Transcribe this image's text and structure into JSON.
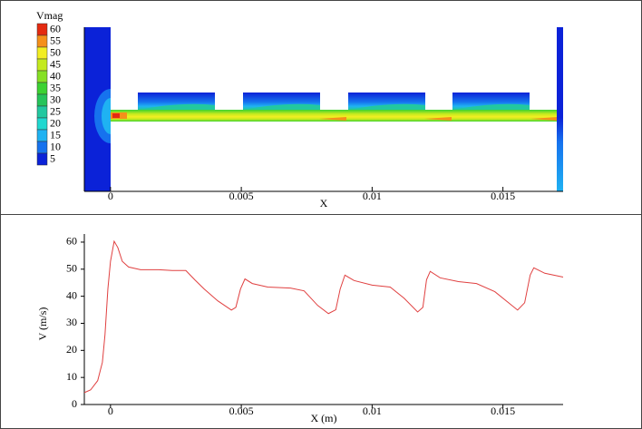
{
  "chart_data": [
    {
      "type": "contour",
      "legend_title": "Vmag",
      "levels": [
        60,
        55,
        50,
        45,
        40,
        35,
        30,
        25,
        20,
        15,
        10,
        5
      ],
      "level_colors": [
        "#e42a10",
        "#f5901a",
        "#f2ee22",
        "#c4ea1e",
        "#86e024",
        "#3cd232",
        "#26c45a",
        "#22c8a0",
        "#20d8d0",
        "#1fb2f2",
        "#1672ee",
        "#0b22d8"
      ],
      "xlabel": "X",
      "xlim": [
        -0.001,
        0.0173
      ],
      "xticks": [
        0,
        0.005,
        0.01,
        0.015
      ]
    },
    {
      "type": "line",
      "xlabel": "X (m)",
      "ylabel": "V (m/s)",
      "color": "#e04040",
      "x": [
        -0.001,
        -0.00076,
        -0.00049,
        -0.00031,
        -0.00021,
        -0.0001,
        0,
        0.00014,
        0.00028,
        0.00045,
        0.00069,
        0.00115,
        0.00184,
        0.00236,
        0.00288,
        0.00323,
        0.00358,
        0.0041,
        0.00462,
        0.00479,
        0.00497,
        0.00514,
        0.00542,
        0.00601,
        0.00688,
        0.0074,
        0.00792,
        0.00833,
        0.00861,
        0.00878,
        0.00896,
        0.00931,
        0.01,
        0.01069,
        0.01122,
        0.01174,
        0.01194,
        0.01208,
        0.01222,
        0.0126,
        0.0133,
        0.01399,
        0.01469,
        0.01556,
        0.01583,
        0.01604,
        0.01618,
        0.0166,
        0.0173
      ],
      "values": [
        4.4,
        5.4,
        8.8,
        15.6,
        25.8,
        42.7,
        52.9,
        60.3,
        58,
        52.9,
        50.8,
        49.8,
        49.8,
        49.5,
        49.5,
        46,
        42.7,
        38.3,
        34.9,
        35.9,
        42.7,
        46.4,
        44.7,
        43.4,
        43,
        42,
        36.6,
        33.6,
        35,
        42.7,
        47.8,
        45.8,
        44.1,
        43.4,
        39.3,
        34.2,
        35.9,
        46.1,
        49.2,
        46.8,
        45.4,
        44.7,
        41.7,
        34.9,
        37.6,
        47.8,
        50.5,
        48.5,
        47.1
      ],
      "xlim": [
        -0.001,
        0.0173
      ],
      "xticks": [
        0,
        0.005,
        0.01,
        0.015
      ],
      "ylim": [
        0,
        63
      ],
      "yticks": [
        0,
        10,
        20,
        30,
        40,
        50,
        60
      ]
    }
  ]
}
